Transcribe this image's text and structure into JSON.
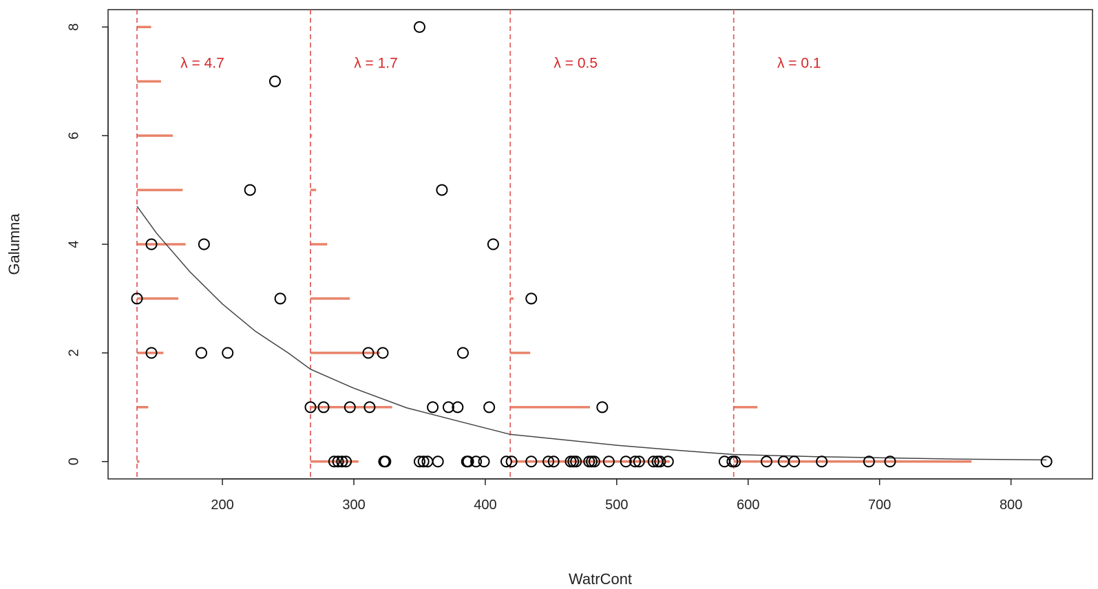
{
  "chart_data": {
    "type": "scatter",
    "title": "",
    "xlabel": "WatrCont",
    "ylabel": "Galumna",
    "xlim": [
      113,
      862
    ],
    "ylim": [
      -0.32,
      8.32
    ],
    "x_ticks": [
      200,
      300,
      400,
      500,
      600,
      700,
      800
    ],
    "y_ticks": [
      0,
      2,
      4,
      6,
      8
    ],
    "grid": false,
    "legend": "none",
    "colors": {
      "points": "#000000",
      "curve": "#444444",
      "vlines": "#e06060",
      "poisson_bars": "#e8836a",
      "lambda_text": "#d62728"
    },
    "points": [
      {
        "x": 350,
        "y": 8
      },
      {
        "x": 240,
        "y": 7
      },
      {
        "x": 221,
        "y": 5
      },
      {
        "x": 367,
        "y": 5
      },
      {
        "x": 146,
        "y": 4
      },
      {
        "x": 186,
        "y": 4
      },
      {
        "x": 406,
        "y": 4
      },
      {
        "x": 135,
        "y": 3
      },
      {
        "x": 244,
        "y": 3
      },
      {
        "x": 435,
        "y": 3
      },
      {
        "x": 146,
        "y": 2
      },
      {
        "x": 184,
        "y": 2
      },
      {
        "x": 204,
        "y": 2
      },
      {
        "x": 311,
        "y": 2
      },
      {
        "x": 322,
        "y": 2
      },
      {
        "x": 383,
        "y": 2
      },
      {
        "x": 267,
        "y": 1
      },
      {
        "x": 277,
        "y": 1
      },
      {
        "x": 297,
        "y": 1
      },
      {
        "x": 312,
        "y": 1
      },
      {
        "x": 360,
        "y": 1
      },
      {
        "x": 372,
        "y": 1
      },
      {
        "x": 379,
        "y": 1
      },
      {
        "x": 403,
        "y": 1
      },
      {
        "x": 489,
        "y": 1
      },
      {
        "x": 285,
        "y": 0
      },
      {
        "x": 288,
        "y": 0
      },
      {
        "x": 291,
        "y": 0
      },
      {
        "x": 294,
        "y": 0
      },
      {
        "x": 323,
        "y": 0
      },
      {
        "x": 324,
        "y": 0
      },
      {
        "x": 350,
        "y": 0
      },
      {
        "x": 353,
        "y": 0
      },
      {
        "x": 356,
        "y": 0
      },
      {
        "x": 364,
        "y": 0
      },
      {
        "x": 386,
        "y": 0
      },
      {
        "x": 387,
        "y": 0
      },
      {
        "x": 393,
        "y": 0
      },
      {
        "x": 399,
        "y": 0
      },
      {
        "x": 416,
        "y": 0
      },
      {
        "x": 420,
        "y": 0
      },
      {
        "x": 435,
        "y": 0
      },
      {
        "x": 448,
        "y": 0
      },
      {
        "x": 452,
        "y": 0
      },
      {
        "x": 465,
        "y": 0
      },
      {
        "x": 467,
        "y": 0
      },
      {
        "x": 469,
        "y": 0
      },
      {
        "x": 479,
        "y": 0
      },
      {
        "x": 481,
        "y": 0
      },
      {
        "x": 483,
        "y": 0
      },
      {
        "x": 494,
        "y": 0
      },
      {
        "x": 507,
        "y": 0
      },
      {
        "x": 514,
        "y": 0
      },
      {
        "x": 517,
        "y": 0
      },
      {
        "x": 528,
        "y": 0
      },
      {
        "x": 531,
        "y": 0
      },
      {
        "x": 533,
        "y": 0
      },
      {
        "x": 539,
        "y": 0
      },
      {
        "x": 582,
        "y": 0
      },
      {
        "x": 588,
        "y": 0
      },
      {
        "x": 590,
        "y": 0
      },
      {
        "x": 614,
        "y": 0
      },
      {
        "x": 627,
        "y": 0
      },
      {
        "x": 635,
        "y": 0
      },
      {
        "x": 656,
        "y": 0
      },
      {
        "x": 692,
        "y": 0
      },
      {
        "x": 708,
        "y": 0
      },
      {
        "x": 827,
        "y": 0
      }
    ],
    "fitted_curve": [
      {
        "x": 135,
        "y": 4.7
      },
      {
        "x": 150,
        "y": 4.2
      },
      {
        "x": 175,
        "y": 3.5
      },
      {
        "x": 200,
        "y": 2.9
      },
      {
        "x": 225,
        "y": 2.4
      },
      {
        "x": 250,
        "y": 2.0
      },
      {
        "x": 267,
        "y": 1.7
      },
      {
        "x": 300,
        "y": 1.35
      },
      {
        "x": 340,
        "y": 0.99
      },
      {
        "x": 380,
        "y": 0.74
      },
      {
        "x": 419,
        "y": 0.5
      },
      {
        "x": 460,
        "y": 0.4
      },
      {
        "x": 500,
        "y": 0.3
      },
      {
        "x": 550,
        "y": 0.2
      },
      {
        "x": 589,
        "y": 0.13
      },
      {
        "x": 650,
        "y": 0.09
      },
      {
        "x": 700,
        "y": 0.07
      },
      {
        "x": 760,
        "y": 0.045
      },
      {
        "x": 827,
        "y": 0.03
      }
    ],
    "segments": [
      {
        "x": 135,
        "lambda_label": "λ = 4.7",
        "lambda": 4.7
      },
      {
        "x": 267,
        "lambda_label": "λ = 1.7",
        "lambda": 1.7
      },
      {
        "x": 419,
        "lambda_label": "λ = 0.5",
        "lambda": 0.5
      },
      {
        "x": 589,
        "lambda_label": "λ = 0.1",
        "lambda": 0.1
      }
    ],
    "poisson_bar_scale_xunits": 200
  }
}
